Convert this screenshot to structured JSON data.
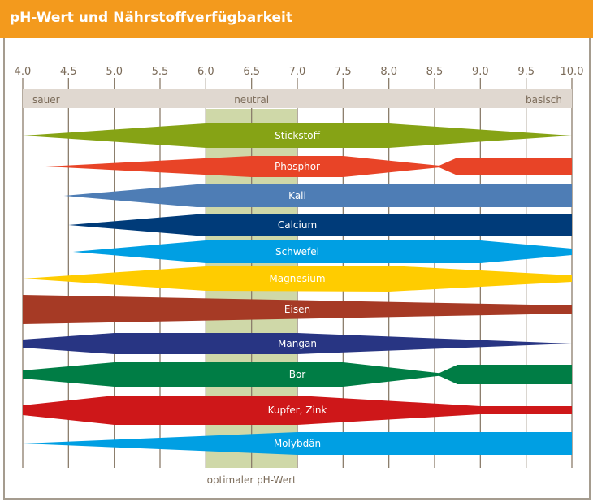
{
  "title": "pH-Wert und Nährstoffverfügbarkeit",
  "chart_data": {
    "type": "band-availability",
    "title": "pH-Wert und Nährstoffverfügbarkeit",
    "xlim": [
      4.0,
      10.0
    ],
    "x_ticks": [
      "4.0",
      "4.5",
      "5.0",
      "5.5",
      "6.0",
      "6.5",
      "7.0",
      "7.5",
      "8.0",
      "8.5",
      "9.0",
      "9.5",
      "10.0"
    ],
    "scale_labels": {
      "left": "sauer",
      "center": "neutral",
      "right": "basisch"
    },
    "optimal_range": [
      6.0,
      7.0
    ],
    "optimal_label": "optimaler pH-Wert",
    "colors": {
      "header": "#F39A1D",
      "optimal": "#CFD8A8",
      "scale": "#E0D8D0",
      "grid": "#8B7D6B"
    },
    "series": [
      {
        "name": "Stickstoff",
        "color": "#86A315",
        "profile": [
          [
            4.0,
            0
          ],
          [
            6.0,
            0.83
          ],
          [
            8.0,
            0.83
          ],
          [
            10.0,
            0
          ]
        ]
      },
      {
        "name": "Phosphor",
        "color": "#E84427",
        "profile": [
          [
            4.25,
            0
          ],
          [
            6.0,
            0.56
          ],
          [
            6.5,
            0.72
          ],
          [
            7.5,
            0.72
          ],
          [
            8.55,
            0.06
          ],
          [
            8.75,
            0.61
          ],
          [
            10.0,
            0.61
          ]
        ]
      },
      {
        "name": "Kali",
        "color": "#4E7DB5",
        "profile": [
          [
            4.45,
            0
          ],
          [
            5.9,
            0.78
          ],
          [
            10.0,
            0.78
          ]
        ]
      },
      {
        "name": "Calcium",
        "color": "#003B79",
        "profile": [
          [
            4.5,
            0
          ],
          [
            6.0,
            0.78
          ],
          [
            10.0,
            0.78
          ]
        ]
      },
      {
        "name": "Schwefel",
        "color": "#009FE3",
        "profile": [
          [
            4.55,
            0
          ],
          [
            6.0,
            0.78
          ],
          [
            9.0,
            0.78
          ],
          [
            10.0,
            0.22
          ]
        ]
      },
      {
        "name": "Magnesium",
        "color": "#FFCC00",
        "profile": [
          [
            4.0,
            0
          ],
          [
            6.0,
            0.83
          ],
          [
            8.0,
            0.89
          ],
          [
            10.0,
            0.22
          ]
        ]
      },
      {
        "name": "Eisen",
        "color": "#A63A25",
        "profile": [
          [
            4.0,
            1.0
          ],
          [
            10.0,
            0.28
          ]
        ]
      },
      {
        "name": "Mangan",
        "color": "#283583",
        "profile": [
          [
            4.0,
            0.28
          ],
          [
            5.0,
            0.72
          ],
          [
            7.0,
            0.72
          ],
          [
            10.0,
            0
          ]
        ]
      },
      {
        "name": "Bor",
        "color": "#007D45",
        "profile": [
          [
            4.0,
            0.28
          ],
          [
            5.0,
            0.83
          ],
          [
            7.5,
            0.83
          ],
          [
            8.55,
            0.1
          ],
          [
            8.75,
            0.67
          ],
          [
            10.0,
            0.67
          ]
        ]
      },
      {
        "name": "Kupfer, Zink",
        "color": "#CE1719",
        "profile": [
          [
            4.0,
            0.33
          ],
          [
            5.0,
            1.0
          ],
          [
            7.0,
            1.0
          ],
          [
            9.0,
            0.28
          ],
          [
            10.0,
            0.28
          ]
        ]
      },
      {
        "name": "Molybdän",
        "color": "#009FE3",
        "profile": [
          [
            4.0,
            0
          ],
          [
            7.0,
            0.78
          ],
          [
            10.0,
            0.78
          ]
        ]
      }
    ]
  }
}
